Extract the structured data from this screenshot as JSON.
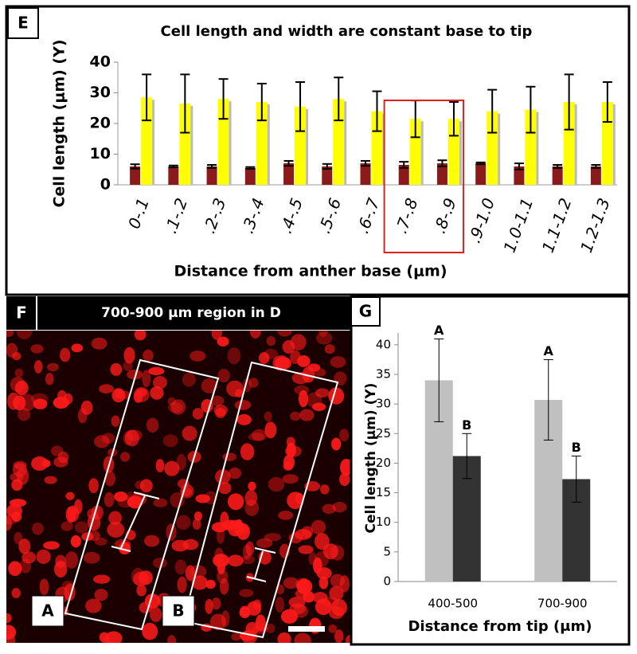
{
  "panel_labels": {
    "e": "E",
    "f": "F",
    "g": "G"
  },
  "chart_data": [
    {
      "type": "bar",
      "title": "Cell length and width are constant base to tip",
      "x_label": "Distance from anther base (μm)",
      "y_label": "Cell length (μm) (Y)",
      "categories": [
        "0-.1",
        ".1-.2",
        ".2-.3",
        ".3-.4",
        ".4-.5",
        ".5-.6",
        ".6-.7",
        ".7-.8",
        ".8-.9",
        ".9-1.0",
        "1.0-1.1",
        "1.1-1.2",
        "1.2-1.3"
      ],
      "series": [
        {
          "color": "#8b1a1a",
          "values": [
            6,
            6,
            6,
            5.5,
            7,
            6,
            7,
            6.5,
            7,
            7,
            6,
            6,
            6
          ],
          "errors": [
            0.7,
            0.3,
            0.5,
            0.3,
            0.8,
            0.8,
            0.8,
            1,
            1,
            0.3,
            1,
            0.5,
            0.5
          ]
        },
        {
          "color": "#ffff00",
          "values": [
            28.5,
            26.5,
            28,
            27,
            25.5,
            28,
            24,
            21.5,
            21.5,
            24,
            24.5,
            27,
            27
          ],
          "errors": [
            7.5,
            9.5,
            6.5,
            6,
            8,
            7,
            6.5,
            6,
            5.5,
            7,
            7.5,
            9,
            6.5
          ]
        }
      ],
      "ylim": [
        0,
        40
      ],
      "yticks": [
        0,
        10,
        20,
        30,
        40
      ],
      "grid": false
    },
    {
      "type": "bar",
      "x_label": "Distance from tip (μm)",
      "y_label": "Cell length (μm) (Y)",
      "categories": [
        "400-500",
        "700-900"
      ],
      "series": [
        {
          "color": "#c0c0c0",
          "values": [
            34,
            30.7
          ],
          "errors": [
            7,
            6.8
          ],
          "annotations": [
            "A",
            "A"
          ]
        },
        {
          "color": "#333333",
          "values": [
            21.2,
            17.3
          ],
          "errors": [
            3.8,
            3.9
          ],
          "annotations": [
            "B",
            "B"
          ]
        }
      ],
      "ylim": [
        0,
        42
      ],
      "yticks": [
        0,
        5,
        10,
        15,
        20,
        25,
        30,
        35,
        40
      ],
      "grid": false
    }
  ],
  "image_panel": {
    "title": "700-900 μm region in D",
    "region_labels": [
      "A",
      "B"
    ]
  }
}
